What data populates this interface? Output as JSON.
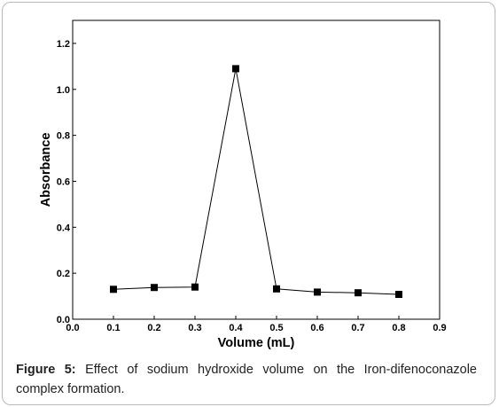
{
  "chart_data": {
    "type": "line",
    "xlabel": "Volume (mL)",
    "ylabel": "Absorbance",
    "xlim": [
      0.0,
      0.9
    ],
    "ylim": [
      0.0,
      1.3
    ],
    "x_ticks": [
      "0.0",
      "0.1",
      "0.2",
      "0.3",
      "0.4",
      "0.5",
      "0.6",
      "0.7",
      "0.8",
      "0.9"
    ],
    "y_ticks": [
      "0.0",
      "0.2",
      "0.4",
      "0.6",
      "0.8",
      "1.0",
      "1.2"
    ],
    "grid": false,
    "marker": "square",
    "series": [
      {
        "x": [
          0.1,
          0.2,
          0.3,
          0.4,
          0.5,
          0.6,
          0.7,
          0.8
        ],
        "y": [
          0.13,
          0.138,
          0.14,
          1.09,
          0.132,
          0.118,
          0.115,
          0.108
        ]
      }
    ],
    "colors": {
      "line": "#000000",
      "marker": "#000000",
      "axes": "#000000"
    }
  },
  "caption": {
    "label": "Figure 5:",
    "text": " Effect of sodium hydroxide volume on the Iron-difenoconazole complex formation."
  }
}
